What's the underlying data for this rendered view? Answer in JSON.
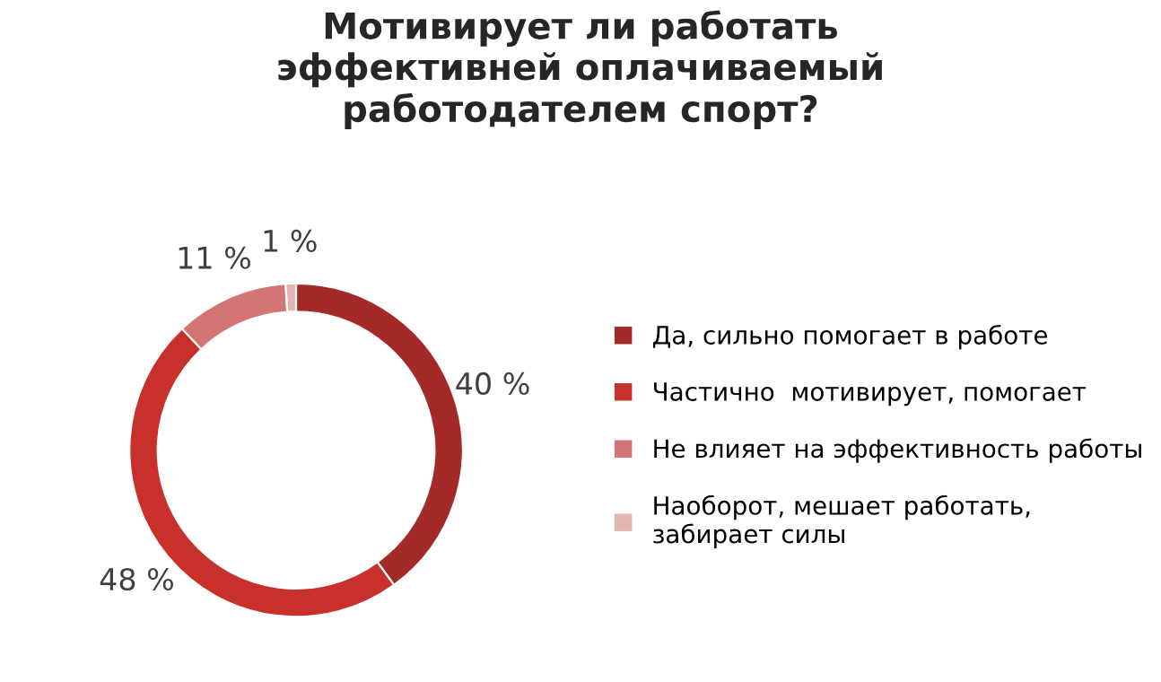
{
  "chart_data": {
    "type": "donut",
    "title": "Мотивирует ли работать\nэффективней оплачиваемый\nработодателем спорт?",
    "categories": [
      "Да, сильно помогает в работе",
      "Частично  мотивирует, помогает",
      "Не влияет на эффективность работы",
      "Наоборот, мешает работать,\nзабирает силы"
    ],
    "values": [
      40,
      48,
      11,
      1
    ],
    "colors": [
      "#a42a28",
      "#c8302c",
      "#d27574",
      "#e3b4b4"
    ],
    "value_labels": [
      "40 %",
      "48 %",
      "11 %",
      "1 %"
    ],
    "legend": "right"
  }
}
